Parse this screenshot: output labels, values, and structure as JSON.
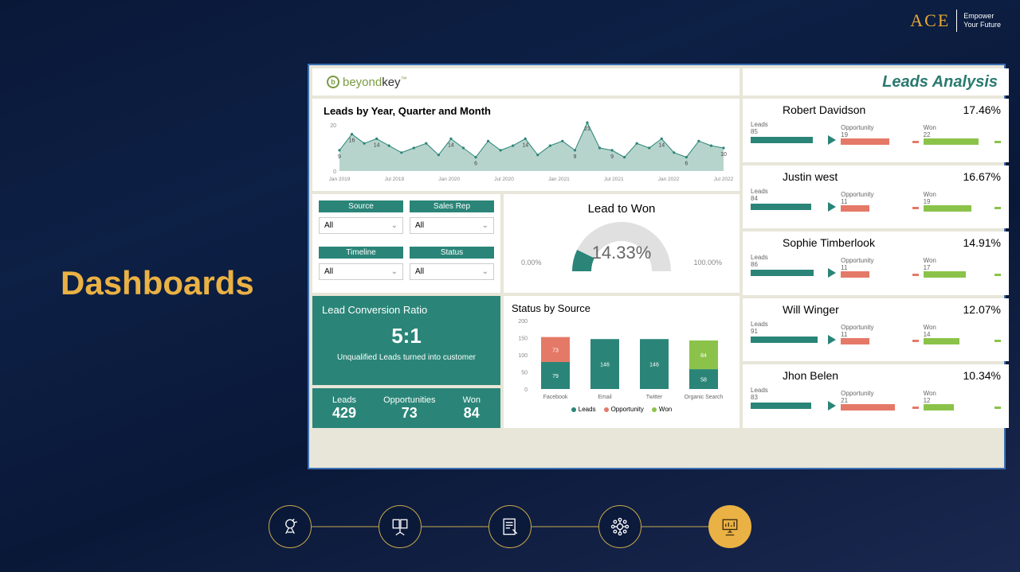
{
  "branding": {
    "ace": "ACE",
    "tagline_l1": "Empower",
    "tagline_l2": "Your Future"
  },
  "slide_title": "Dashboards",
  "dashboard": {
    "logo_text": "beyondkey",
    "logo_tm": "™",
    "header_title": "Leads Analysis",
    "area_chart": {
      "title": "Leads by Year, Quarter and Month",
      "y_max": 20,
      "y_ticks": [
        0,
        20
      ],
      "x_labels": [
        "Jan 2019",
        "Jul 2019",
        "Jan 2020",
        "Jul 2020",
        "Jan 2021",
        "Jul 2021",
        "Jan 2022",
        "Jul 2022"
      ],
      "values": [
        9,
        16,
        12,
        14,
        11,
        8,
        10,
        12,
        7,
        14,
        10,
        6,
        13,
        9,
        11,
        14,
        7,
        11,
        13,
        9,
        21,
        10,
        9,
        6,
        12,
        10,
        14,
        8,
        6,
        13,
        11,
        10
      ],
      "point_labels": [
        "9",
        "16",
        "",
        "14",
        "",
        "",
        "",
        "",
        "",
        "14",
        "",
        "6",
        "",
        "",
        "",
        "14",
        "",
        "",
        "",
        "9",
        "21",
        "",
        "9",
        "",
        "",
        "",
        "14",
        "",
        "6",
        "",
        "",
        "10"
      ],
      "line_color": "#2a8578",
      "fill_color": "#a5c9bf",
      "marker_color": "#2a8578"
    },
    "filters": [
      {
        "label": "Source",
        "value": "All"
      },
      {
        "label": "Sales Rep",
        "value": "All"
      },
      {
        "label": "Timeline",
        "value": "All"
      },
      {
        "label": "Status",
        "value": "All"
      }
    ],
    "gauge": {
      "title": "Lead to Won",
      "value_pct": 14.33,
      "value_text": "14.33%",
      "min_label": "0.00%",
      "max_label": "100.00%",
      "fill_color": "#2a8578",
      "track_color": "#e0e0e0"
    },
    "conversion": {
      "title": "Lead Conversion Ratio",
      "ratio": "5:1",
      "description": "Unqualified Leads turned into customer"
    },
    "status_chart": {
      "title": "Status by Source",
      "y_ticks": [
        0,
        50,
        100,
        150,
        200
      ],
      "categories": [
        "Facebook",
        "Email",
        "Twitter",
        "Organic Search"
      ],
      "series": [
        {
          "name": "Leads",
          "color": "#2a8578",
          "values": [
            79,
            146,
            146,
            58
          ]
        },
        {
          "name": "Opportunity",
          "color": "#e57968",
          "values": [
            73,
            0,
            0,
            0
          ]
        },
        {
          "name": "Won",
          "color": "#8bc34a",
          "values": [
            0,
            0,
            0,
            84
          ]
        }
      ],
      "bar_labels": [
        [
          "79",
          "73"
        ],
        [
          "146"
        ],
        [
          "146"
        ],
        [
          "58",
          "84"
        ]
      ]
    },
    "totals": [
      {
        "label": "Leads",
        "value": "429"
      },
      {
        "label": "Opportunities",
        "value": "73"
      },
      {
        "label": "Won",
        "value": "84"
      }
    ],
    "reps": [
      {
        "name": "Robert Davidson",
        "pct": "17.46%",
        "leads": {
          "label": "Leads",
          "val": "85",
          "fill": 82,
          "color": "#2a8578"
        },
        "opp": {
          "label": "Opportunity",
          "val": "19",
          "fill": 70,
          "color": "#e57968"
        },
        "won": {
          "label": "Won",
          "val": "22",
          "fill": 80,
          "color": "#8bc34a"
        }
      },
      {
        "name": "Justin west",
        "pct": "16.67%",
        "leads": {
          "label": "Leads",
          "val": "84",
          "fill": 80,
          "color": "#2a8578"
        },
        "opp": {
          "label": "Opportunity",
          "val": "11",
          "fill": 42,
          "color": "#e57968"
        },
        "won": {
          "label": "Won",
          "val": "19",
          "fill": 70,
          "color": "#8bc34a"
        }
      },
      {
        "name": "Sophie Timberlook",
        "pct": "14.91%",
        "leads": {
          "label": "Leads",
          "val": "86",
          "fill": 83,
          "color": "#2a8578"
        },
        "opp": {
          "label": "Opportunity",
          "val": "11",
          "fill": 42,
          "color": "#e57968"
        },
        "won": {
          "label": "Won",
          "val": "17",
          "fill": 62,
          "color": "#8bc34a"
        }
      },
      {
        "name": "Will Winger",
        "pct": "12.07%",
        "leads": {
          "label": "Leads",
          "val": "91",
          "fill": 88,
          "color": "#2a8578"
        },
        "opp": {
          "label": "Opportunity",
          "val": "11",
          "fill": 42,
          "color": "#e57968"
        },
        "won": {
          "label": "Won",
          "val": "14",
          "fill": 52,
          "color": "#8bc34a"
        }
      },
      {
        "name": "Jhon Belen",
        "pct": "10.34%",
        "leads": {
          "label": "Leads",
          "val": "83",
          "fill": 80,
          "color": "#2a8578"
        },
        "opp": {
          "label": "Opportunity",
          "val": "21",
          "fill": 78,
          "color": "#e57968"
        },
        "won": {
          "label": "Won",
          "val": "12",
          "fill": 44,
          "color": "#8bc34a"
        }
      }
    ]
  }
}
